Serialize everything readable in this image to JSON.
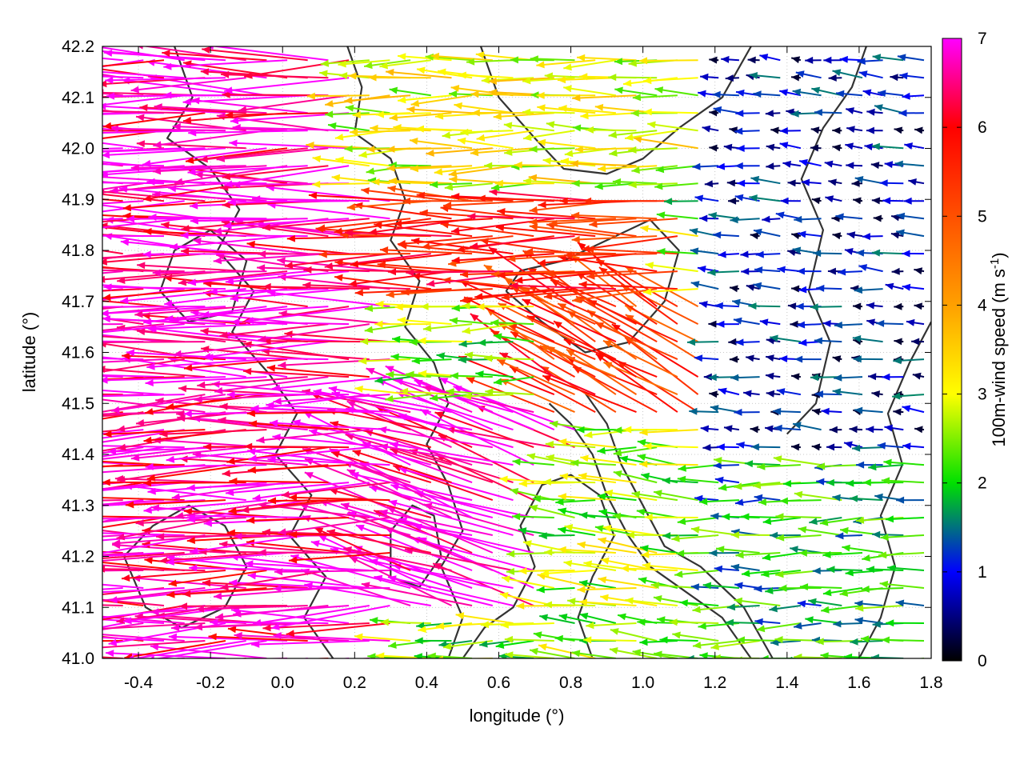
{
  "chart_data": {
    "type": "vector-field",
    "xlabel": "longitude (°)",
    "ylabel": "latitude (°)",
    "xlim": [
      -0.5,
      1.8
    ],
    "ylim": [
      41.0,
      42.2
    ],
    "xticks": [
      "-0.4",
      "-0.2",
      "0.0",
      "0.2",
      "0.4",
      "0.6",
      "0.8",
      "1.0",
      "1.2",
      "1.4",
      "1.6",
      "1.8"
    ],
    "xtick_values": [
      -0.4,
      -0.2,
      0.0,
      0.2,
      0.4,
      0.6,
      0.8,
      1.0,
      1.2,
      1.4,
      1.6,
      1.8
    ],
    "yticks": [
      "41.0",
      "41.1",
      "41.2",
      "41.3",
      "41.4",
      "41.5",
      "41.6",
      "41.7",
      "41.8",
      "41.9",
      "42.0",
      "42.1",
      "42.2"
    ],
    "ytick_values": [
      41.0,
      41.1,
      41.2,
      41.3,
      41.4,
      41.5,
      41.6,
      41.7,
      41.8,
      41.9,
      42.0,
      42.1,
      42.2
    ],
    "grid": true,
    "colorbar": {
      "label_main": "100m-wind speed (m s",
      "label_sup": "-1",
      "label_end": ")",
      "range": [
        0,
        7
      ],
      "ticks": [
        "0",
        "1",
        "2",
        "3",
        "4",
        "5",
        "6",
        "7"
      ],
      "tick_values": [
        0,
        1,
        2,
        3,
        4,
        5,
        6,
        7
      ],
      "palette": [
        "#000000",
        "#0000ff",
        "#00e000",
        "#ffff00",
        "#ffa000",
        "#ff5000",
        "#ff0000",
        "#ff00ff"
      ]
    },
    "wind_regions": [
      {
        "lon": [
          -0.5,
          0.3
        ],
        "lat": [
          41.55,
          42.2
        ],
        "speed": 6.8,
        "direction_deg": 180
      },
      {
        "lon": [
          -0.5,
          0.3
        ],
        "lat": [
          41.0,
          41.55
        ],
        "speed": 6.6,
        "direction_deg": 182
      },
      {
        "lon": [
          0.3,
          0.85
        ],
        "lat": [
          41.1,
          41.5
        ],
        "speed": 6.9,
        "direction_deg": 162
      },
      {
        "lon": [
          0.3,
          1.1
        ],
        "lat": [
          41.7,
          41.9
        ],
        "speed": 5.6,
        "direction_deg": 180
      },
      {
        "lon": [
          0.7,
          1.35
        ],
        "lat": [
          41.45,
          41.7
        ],
        "speed": 5.4,
        "direction_deg": 150
      },
      {
        "lon": [
          0.2,
          1.2
        ],
        "lat": [
          41.9,
          42.2
        ],
        "speed": 3.0,
        "direction_deg": 180
      },
      {
        "lon": [
          1.2,
          1.8
        ],
        "lat": [
          41.4,
          42.2
        ],
        "speed": 0.8,
        "direction_deg": 175
      },
      {
        "lon": [
          1.2,
          1.8
        ],
        "lat": [
          41.0,
          41.4
        ],
        "speed": 1.9,
        "direction_deg": 180
      },
      {
        "lon": [
          0.7,
          1.2
        ],
        "lat": [
          41.0,
          41.4
        ],
        "speed": 2.6,
        "direction_deg": 175
      }
    ],
    "terrain_contours": [
      [
        [
          0.18,
          42.2
        ],
        [
          0.22,
          42.12
        ],
        [
          0.2,
          42.03
        ],
        [
          0.3,
          41.98
        ],
        [
          0.34,
          41.9
        ],
        [
          0.3,
          41.82
        ],
        [
          0.38,
          41.74
        ],
        [
          0.34,
          41.65
        ],
        [
          0.42,
          41.58
        ],
        [
          0.46,
          41.5
        ],
        [
          0.4,
          41.42
        ],
        [
          0.46,
          41.34
        ],
        [
          0.5,
          41.25
        ],
        [
          0.44,
          41.18
        ],
        [
          0.5,
          41.08
        ],
        [
          0.46,
          41.0
        ]
      ],
      [
        [
          -0.3,
          42.2
        ],
        [
          -0.25,
          42.1
        ],
        [
          -0.32,
          42.02
        ],
        [
          -0.2,
          41.96
        ],
        [
          -0.12,
          41.88
        ],
        [
          -0.18,
          41.8
        ],
        [
          -0.08,
          41.72
        ],
        [
          -0.14,
          41.64
        ],
        [
          -0.04,
          41.56
        ],
        [
          0.04,
          41.48
        ],
        [
          -0.02,
          41.4
        ],
        [
          0.08,
          41.32
        ],
        [
          0.02,
          41.24
        ],
        [
          0.12,
          41.16
        ],
        [
          0.06,
          41.08
        ],
        [
          0.14,
          41.0
        ]
      ],
      [
        [
          0.55,
          42.2
        ],
        [
          0.6,
          42.1
        ],
        [
          0.7,
          42.02
        ],
        [
          0.78,
          41.96
        ],
        [
          0.9,
          41.95
        ],
        [
          1.0,
          41.98
        ],
        [
          1.1,
          42.04
        ],
        [
          1.22,
          42.1
        ],
        [
          1.3,
          42.2
        ]
      ],
      [
        [
          0.62,
          41.72
        ],
        [
          0.72,
          41.66
        ],
        [
          0.84,
          41.6
        ],
        [
          0.96,
          41.62
        ],
        [
          1.06,
          41.7
        ],
        [
          1.1,
          41.8
        ],
        [
          1.02,
          41.86
        ],
        [
          0.9,
          41.82
        ],
        [
          0.78,
          41.78
        ],
        [
          0.66,
          41.76
        ],
        [
          0.62,
          41.72
        ]
      ],
      [
        [
          1.3,
          41.0
        ],
        [
          1.22,
          41.08
        ],
        [
          1.1,
          41.14
        ],
        [
          1.02,
          41.18
        ],
        [
          0.96,
          41.24
        ],
        [
          0.9,
          41.32
        ],
        [
          0.86,
          41.4
        ],
        [
          0.8,
          41.46
        ],
        [
          0.74,
          41.5
        ]
      ],
      [
        [
          1.36,
          41.0
        ],
        [
          1.28,
          41.1
        ],
        [
          1.16,
          41.18
        ],
        [
          1.06,
          41.22
        ],
        [
          1.0,
          41.3
        ],
        [
          0.94,
          41.38
        ],
        [
          0.9,
          41.46
        ],
        [
          0.84,
          41.52
        ]
      ],
      [
        [
          1.4,
          41.44
        ],
        [
          1.48,
          41.5
        ],
        [
          1.52,
          41.62
        ],
        [
          1.46,
          41.72
        ],
        [
          1.5,
          41.84
        ],
        [
          1.44,
          41.94
        ],
        [
          1.5,
          42.04
        ],
        [
          1.58,
          42.12
        ],
        [
          1.62,
          42.2
        ]
      ],
      [
        [
          1.6,
          41.0
        ],
        [
          1.66,
          41.08
        ],
        [
          1.7,
          41.18
        ],
        [
          1.66,
          41.28
        ],
        [
          1.72,
          41.38
        ],
        [
          1.68,
          41.48
        ],
        [
          1.74,
          41.58
        ],
        [
          1.8,
          41.66
        ]
      ],
      [
        [
          0.5,
          41.0
        ],
        [
          0.56,
          41.06
        ],
        [
          0.64,
          41.1
        ],
        [
          0.7,
          41.18
        ],
        [
          0.66,
          41.26
        ],
        [
          0.72,
          41.34
        ],
        [
          0.8,
          41.36
        ],
        [
          0.88,
          41.32
        ],
        [
          0.92,
          41.24
        ],
        [
          0.86,
          41.16
        ],
        [
          0.82,
          41.08
        ],
        [
          0.86,
          41.0
        ]
      ],
      [
        [
          -0.44,
          41.2
        ],
        [
          -0.36,
          41.26
        ],
        [
          -0.26,
          41.3
        ],
        [
          -0.16,
          41.26
        ],
        [
          -0.1,
          41.18
        ],
        [
          -0.16,
          41.1
        ],
        [
          -0.28,
          41.06
        ],
        [
          -0.38,
          41.1
        ],
        [
          -0.44,
          41.2
        ]
      ],
      [
        [
          -0.3,
          41.8
        ],
        [
          -0.2,
          41.84
        ],
        [
          -0.1,
          41.78
        ],
        [
          -0.14,
          41.68
        ],
        [
          -0.26,
          41.66
        ],
        [
          -0.34,
          41.72
        ],
        [
          -0.3,
          41.8
        ]
      ],
      [
        [
          0.3,
          41.25
        ],
        [
          0.36,
          41.3
        ],
        [
          0.42,
          41.28
        ],
        [
          0.44,
          41.2
        ],
        [
          0.38,
          41.14
        ],
        [
          0.3,
          41.16
        ],
        [
          0.3,
          41.25
        ]
      ]
    ]
  }
}
